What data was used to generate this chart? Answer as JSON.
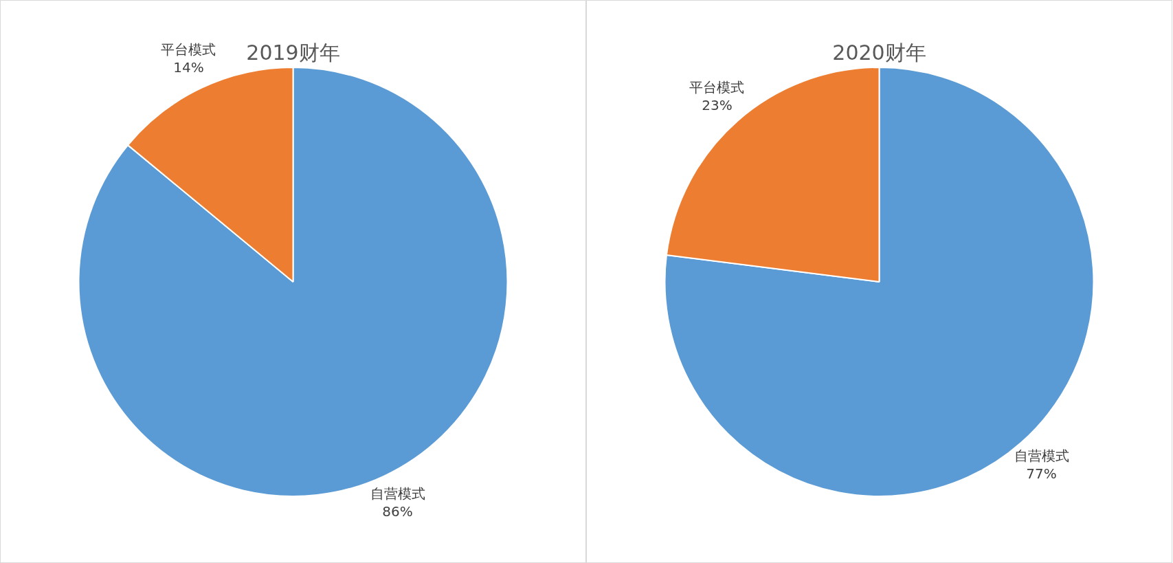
{
  "chart_data": [
    {
      "type": "pie",
      "title": "2019财年",
      "categories": [
        "自营模式",
        "平台模式"
      ],
      "values": [
        86,
        14
      ],
      "colors": [
        "#5b9bd5",
        "#ed7d31"
      ],
      "value_labels": [
        "86%",
        "14%"
      ]
    },
    {
      "type": "pie",
      "title": "2020财年",
      "categories": [
        "自营模式",
        "平台模式"
      ],
      "values": [
        77,
        23
      ],
      "colors": [
        "#5b9bd5",
        "#ed7d31"
      ],
      "value_labels": [
        "77%",
        "23%"
      ]
    }
  ]
}
